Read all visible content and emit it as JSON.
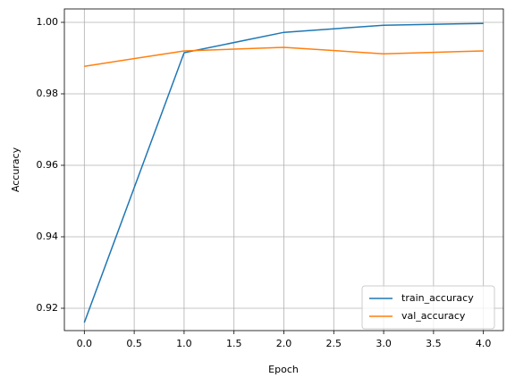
{
  "chart_data": {
    "type": "line",
    "x_label": "Epoch",
    "y_label": "Accuracy",
    "x": [
      0,
      1,
      2,
      3,
      4
    ],
    "series": [
      {
        "name": "train_accuracy",
        "color": "#1f77b4",
        "values": [
          0.916,
          0.9915,
          0.9972,
          0.9992,
          0.9997
        ]
      },
      {
        "name": "val_accuracy",
        "color": "#ff7f0e",
        "values": [
          0.9877,
          0.992,
          0.993,
          0.9912,
          0.992
        ]
      }
    ],
    "xlim": [
      -0.2,
      4.2
    ],
    "xticks": [
      {
        "value": 0,
        "label": "0.0"
      },
      0.5,
      {
        "value": 1,
        "label": "1.0"
      },
      1.5,
      {
        "value": 2,
        "label": "2.0"
      },
      2.5,
      {
        "value": 3,
        "label": "3.0"
      },
      3.5,
      {
        "value": 4,
        "label": "4.0"
      }
    ],
    "ylim": [
      0.91375,
      1.00375
    ],
    "yticks": [
      0.92,
      0.94,
      0.96,
      0.98,
      {
        "value": 1,
        "label": "1.00"
      }
    ],
    "grid": true,
    "legend": "lower right"
  }
}
